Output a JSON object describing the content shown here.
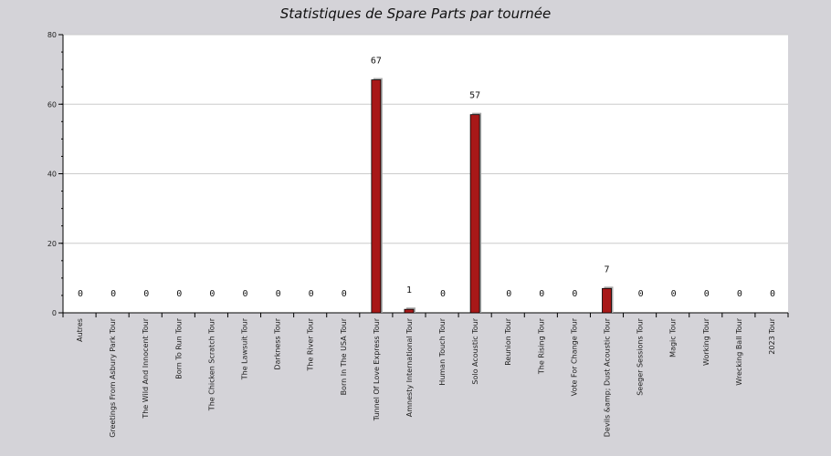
{
  "chart_data": {
    "type": "bar",
    "title": "Statistiques de Spare Parts par tournée",
    "xlabel": "",
    "ylabel": "",
    "ylim": [
      0,
      80
    ],
    "yticks": [
      0,
      20,
      40,
      60,
      80
    ],
    "grid": true,
    "legend": "none",
    "colors": {
      "bar": "#a81818",
      "bar_shadow": "#a9a9a9",
      "plot_background": "#ffffff",
      "page_background": "#d4d3d8",
      "gridline": "#cccccc"
    },
    "categories": [
      "Autres",
      "Greetings From Asbury Park Tour",
      "The Wild And Innocent Tour",
      "Born To Run Tour",
      "The Chicken Scratch Tour",
      "The Lawsuit Tour",
      "Darkness Tour",
      "The River Tour",
      "Born In The USA Tour",
      "Tunnel Of Love Express Tour",
      "Amnesty International Tour",
      "Human Touch Tour",
      "Solo Acoustic Tour",
      "Reunion Tour",
      "The Rising Tour",
      "Vote For Change Tour",
      "Devils &amp; Dust Acoustic Tour",
      "Seeger Sessions Tour",
      "Magic Tour",
      "Working Tour",
      "Wrecking Ball Tour",
      "2023 Tour"
    ],
    "values": [
      0,
      0,
      0,
      0,
      0,
      0,
      0,
      0,
      0,
      67,
      1,
      0,
      57,
      0,
      0,
      0,
      7,
      0,
      0,
      0,
      0,
      0
    ]
  }
}
